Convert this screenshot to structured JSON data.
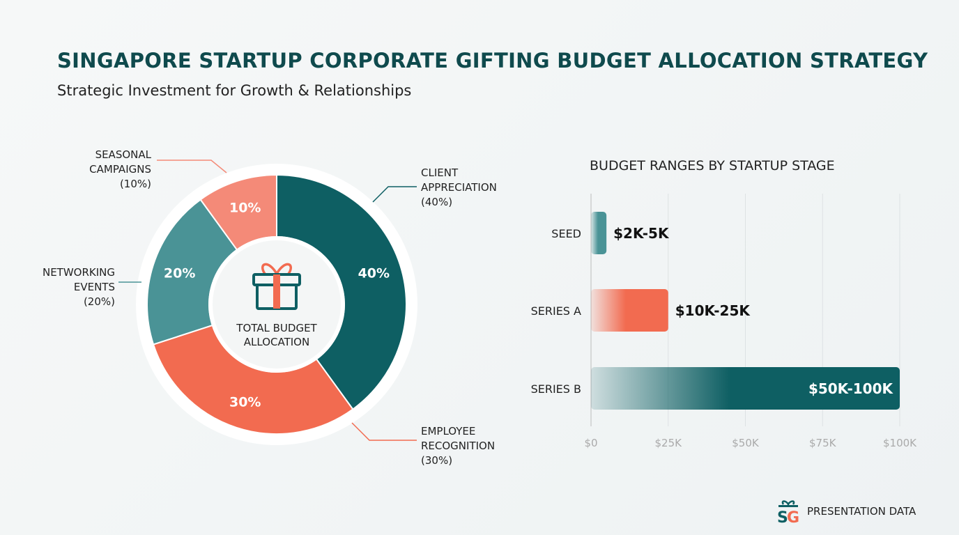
{
  "title": "SINGAPORE STARTUP CORPORATE GIFTING BUDGET ALLOCATION STRATEGY",
  "subtitle": "Strategic Investment for Growth & Relationships",
  "footer": "PRESENTATION DATA",
  "chart_data": [
    {
      "type": "pie",
      "style": "donut",
      "center_label": "TOTAL BUDGET ALLOCATION",
      "center_icon": "gift-icon",
      "slices": [
        {
          "label": "CLIENT APPRECIATION",
          "value": 40,
          "display": "40%",
          "legend": "(40%)",
          "color": "#0e5f63"
        },
        {
          "label": "EMPLOYEE RECOGNITION",
          "value": 30,
          "display": "30%",
          "legend": "(30%)",
          "color": "#f26b50"
        },
        {
          "label": "NETWORKING EVENTS",
          "value": 20,
          "display": "20%",
          "legend": "(20%)",
          "color": "#4a9396"
        },
        {
          "label": "SEASONAL CAMPAIGNS",
          "value": 10,
          "display": "10%",
          "legend": "(10%)",
          "color": "#f48a78"
        }
      ]
    },
    {
      "type": "bar",
      "orientation": "horizontal",
      "title": "BUDGET RANGES BY STARTUP STAGE",
      "categories": [
        "SEED",
        "SERIES A",
        "SERIES B"
      ],
      "ranges": [
        [
          2000,
          5000
        ],
        [
          10000,
          25000
        ],
        [
          50000,
          100000
        ]
      ],
      "data_labels": [
        "$2K-5K",
        "$10K-25K",
        "$50K-100K"
      ],
      "colors": [
        "#4a9396",
        "#f26b50",
        "#0e5f63"
      ],
      "xlim": [
        0,
        100000
      ],
      "xticks": [
        "$0",
        "$25K",
        "$50K",
        "$75K",
        "$100K"
      ],
      "grid": true
    }
  ]
}
